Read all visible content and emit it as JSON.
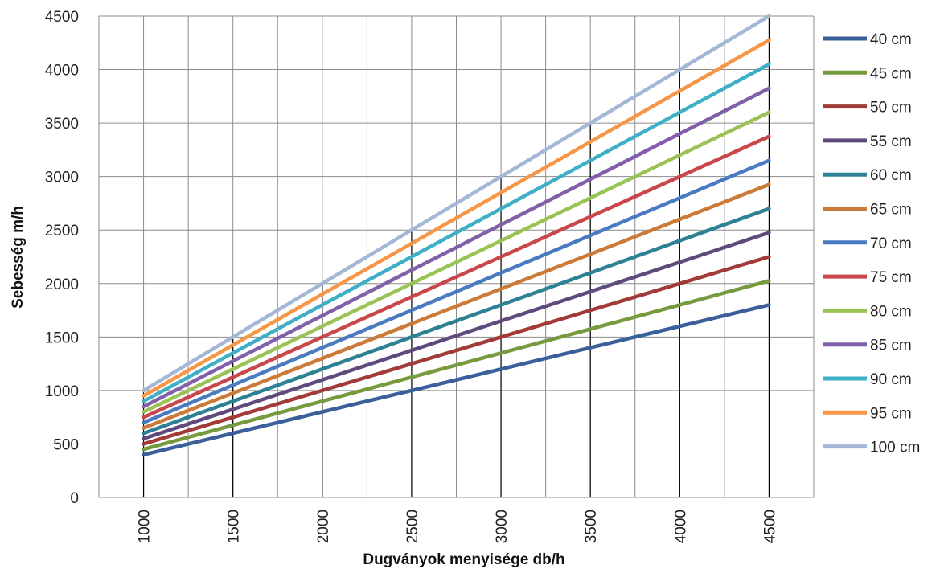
{
  "chart_data": {
    "type": "line",
    "title": "",
    "xlabel": "Dugványok menyisége db/h",
    "ylabel": "Sebesség m/h",
    "ylim": [
      0,
      4500
    ],
    "y_ticks": [
      0,
      500,
      1000,
      1500,
      2000,
      2500,
      3000,
      3500,
      4000,
      4500
    ],
    "x_ticks": [
      1000,
      1500,
      2000,
      2500,
      3000,
      3500,
      4000,
      4500
    ],
    "x_tick_labels": [
      "1000",
      "1500",
      "2000",
      "2500",
      "3000",
      "3500",
      "4000",
      "4500"
    ],
    "x": [
      1000,
      1500,
      2000,
      2500,
      3000,
      3500,
      4000,
      4500
    ],
    "grid": true,
    "legend_position": "right",
    "series": [
      {
        "name": "40 cm",
        "color": "#3A5F9B",
        "values": [
          400,
          600,
          800,
          1000,
          1200,
          1400,
          1600,
          1800
        ]
      },
      {
        "name": "45 cm",
        "color": "#779A3F",
        "values": [
          450,
          675,
          900,
          1125,
          1350,
          1575,
          1800,
          2025
        ]
      },
      {
        "name": "50 cm",
        "color": "#A23A38",
        "values": [
          500,
          750,
          1000,
          1250,
          1500,
          1750,
          2000,
          2250
        ]
      },
      {
        "name": "55 cm",
        "color": "#5F4A7D",
        "values": [
          550,
          825,
          1100,
          1375,
          1650,
          1925,
          2200,
          2475
        ]
      },
      {
        "name": "60 cm",
        "color": "#2E8095",
        "values": [
          600,
          900,
          1200,
          1500,
          1800,
          2100,
          2400,
          2700
        ]
      },
      {
        "name": "65 cm",
        "color": "#CC7A38",
        "values": [
          650,
          975,
          1300,
          1625,
          1950,
          2275,
          2600,
          2925
        ]
      },
      {
        "name": "70 cm",
        "color": "#4A7BC1",
        "values": [
          700,
          1050,
          1400,
          1750,
          2100,
          2450,
          2800,
          3150
        ]
      },
      {
        "name": "75 cm",
        "color": "#C9474A",
        "values": [
          750,
          1125,
          1500,
          1875,
          2250,
          2625,
          3000,
          3375
        ]
      },
      {
        "name": "80 cm",
        "color": "#9BC254",
        "values": [
          800,
          1200,
          1600,
          2000,
          2400,
          2800,
          3200,
          3600
        ]
      },
      {
        "name": "85 cm",
        "color": "#8060A8",
        "values": [
          850,
          1275,
          1700,
          2125,
          2550,
          2975,
          3400,
          3825
        ]
      },
      {
        "name": "90 cm",
        "color": "#3EAFC6",
        "values": [
          900,
          1350,
          1800,
          2250,
          2700,
          3150,
          3600,
          4050
        ]
      },
      {
        "name": "95 cm",
        "color": "#F79646",
        "values": [
          950,
          1425,
          1900,
          2375,
          2850,
          3325,
          3800,
          4275
        ]
      },
      {
        "name": "100 cm",
        "color": "#A5B7D6",
        "values": [
          1000,
          1500,
          2000,
          2500,
          3000,
          3500,
          4000,
          4500
        ]
      }
    ]
  }
}
